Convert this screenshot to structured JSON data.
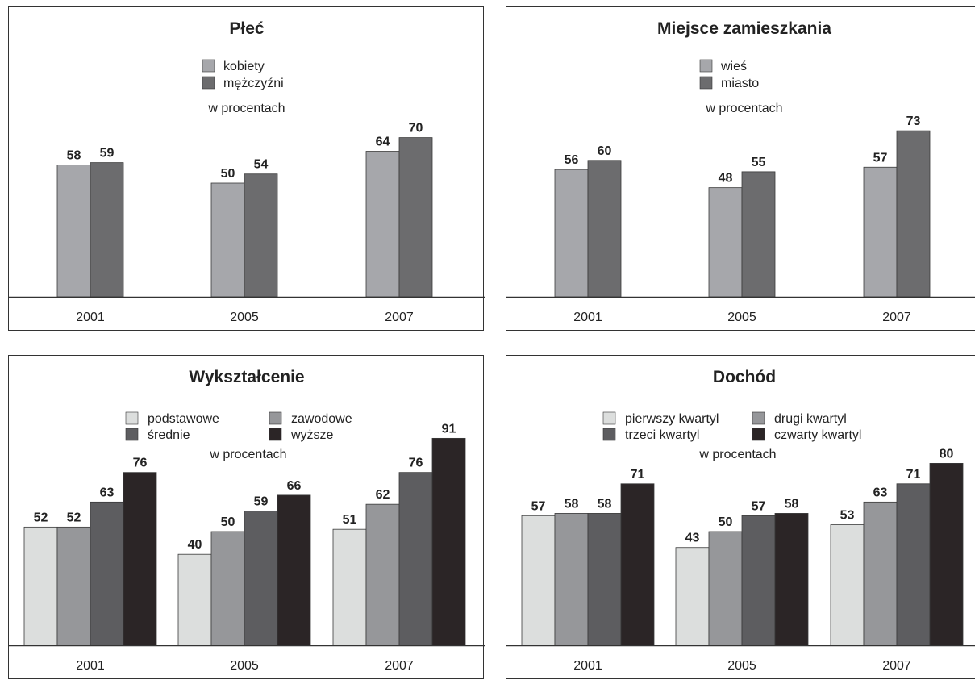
{
  "colors": {
    "two_series": [
      "#a6a7ab",
      "#6c6c6e"
    ],
    "four_series": [
      "#dcdedd",
      "#96979a",
      "#5d5d60",
      "#2b2526"
    ]
  },
  "chart_data": [
    {
      "type": "bar",
      "title": "Płeć",
      "unit_label": "w procentach",
      "categories": [
        "2001",
        "2005",
        "2007"
      ],
      "series": [
        {
          "name": "kobiety",
          "values": [
            58,
            50,
            64
          ]
        },
        {
          "name": "mężczyźni",
          "values": [
            59,
            54,
            70
          ]
        }
      ],
      "legend": "top-center",
      "grid": false,
      "ylim": [
        0,
        100
      ]
    },
    {
      "type": "bar",
      "title": "Miejsce zamieszkania",
      "unit_label": "w procentach",
      "categories": [
        "2001",
        "2005",
        "2007"
      ],
      "series": [
        {
          "name": "wieś",
          "values": [
            56,
            48,
            57
          ]
        },
        {
          "name": "miasto",
          "values": [
            60,
            55,
            73
          ]
        }
      ],
      "legend": "top-center",
      "grid": false,
      "ylim": [
        0,
        100
      ]
    },
    {
      "type": "bar",
      "title": "Wykształcenie",
      "unit_label": "w procentach",
      "categories": [
        "2001",
        "2005",
        "2007"
      ],
      "series": [
        {
          "name": "podstawowe",
          "values": [
            52,
            40,
            51
          ]
        },
        {
          "name": "zawodowe",
          "values": [
            52,
            50,
            62
          ]
        },
        {
          "name": "średnie",
          "values": [
            63,
            59,
            76
          ]
        },
        {
          "name": "wyższe",
          "values": [
            76,
            66,
            91
          ]
        }
      ],
      "legend": "top-center",
      "grid": false,
      "ylim": [
        0,
        100
      ]
    },
    {
      "type": "bar",
      "title": "Dochód",
      "unit_label": "w procentach",
      "categories": [
        "2001",
        "2005",
        "2007"
      ],
      "series": [
        {
          "name": "pierwszy kwartyl",
          "values": [
            57,
            43,
            53
          ]
        },
        {
          "name": "drugi kwartyl",
          "values": [
            58,
            50,
            63
          ]
        },
        {
          "name": "trzeci kwartyl",
          "values": [
            58,
            57,
            71
          ]
        },
        {
          "name": "czwarty kwartyl",
          "values": [
            71,
            58,
            80
          ]
        }
      ],
      "legend": "top-center",
      "grid": false,
      "ylim": [
        0,
        100
      ]
    }
  ]
}
